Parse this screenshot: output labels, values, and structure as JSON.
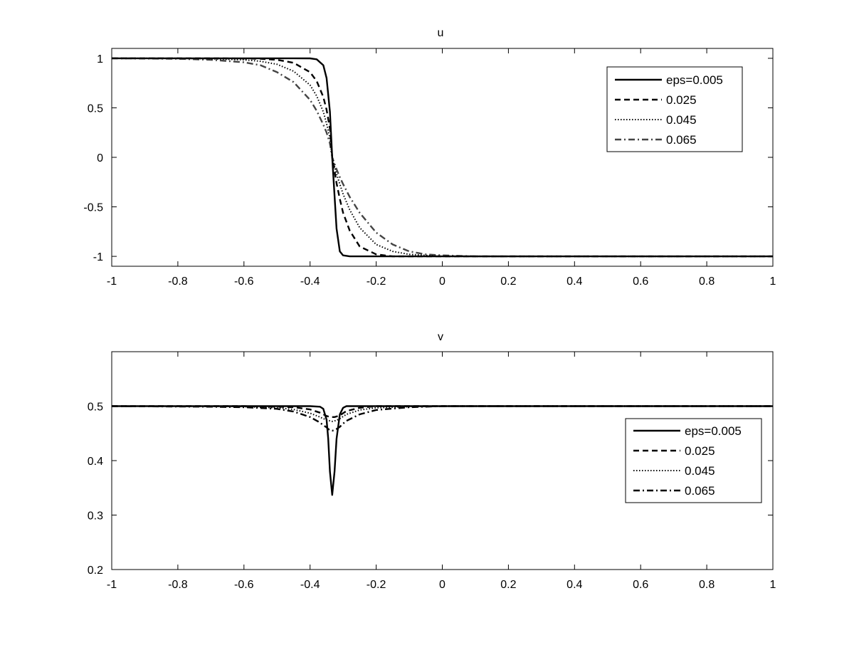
{
  "chart_data": [
    {
      "type": "line",
      "title": "u",
      "xlabel": "",
      "ylabel": "",
      "xlim": [
        -1,
        1
      ],
      "ylim": [
        -1.1,
        1.1
      ],
      "xticks": [
        -1,
        -0.8,
        -0.6,
        -0.4,
        -0.2,
        0,
        0.2,
        0.4,
        0.6,
        0.8,
        1
      ],
      "xtick_labels": [
        "-1",
        "-0.8",
        "-0.6",
        "-0.4",
        "-0.2",
        "0",
        "0.2",
        "0.4",
        "0.6",
        "0.8",
        "1"
      ],
      "yticks": [
        -1,
        -0.5,
        0,
        0.5,
        1
      ],
      "ytick_labels": [
        "-1",
        "-0.5",
        "0",
        "0.5",
        "1"
      ],
      "grid": false,
      "legend_position": "top-right",
      "x": [
        -1,
        -0.8,
        -0.7,
        -0.6,
        -0.55,
        -0.5,
        -0.45,
        -0.4,
        -0.38,
        -0.36,
        -0.35,
        -0.34,
        -0.333,
        -0.32,
        -0.31,
        -0.3,
        -0.28,
        -0.25,
        -0.2,
        -0.15,
        -0.1,
        -0.05,
        0,
        0.1,
        0.3,
        0.6,
        1
      ],
      "series": [
        {
          "name": "eps=0.005",
          "style": "solid",
          "color": "#000000",
          "values": [
            1,
            1,
            1,
            1,
            1,
            1,
            1,
            0.999,
            0.99,
            0.93,
            0.8,
            0.46,
            0,
            -0.72,
            -0.95,
            -0.99,
            -1,
            -1,
            -1,
            -1,
            -1,
            -1,
            -1,
            -1,
            -1,
            -1,
            -1
          ]
        },
        {
          "name": "0.025",
          "style": "dashed",
          "color": "#000000",
          "values": [
            1,
            1,
            1,
            0.998,
            0.995,
            0.985,
            0.955,
            0.86,
            0.77,
            0.61,
            0.48,
            0.29,
            0,
            -0.26,
            -0.42,
            -0.56,
            -0.74,
            -0.9,
            -0.98,
            -1,
            -1,
            -1,
            -1,
            -1,
            -1,
            -1,
            -1
          ]
        },
        {
          "name": "0.045",
          "style": "dotted",
          "color": "#000000",
          "values": [
            1,
            1,
            0.995,
            0.985,
            0.97,
            0.94,
            0.87,
            0.73,
            0.62,
            0.46,
            0.34,
            0.2,
            0,
            -0.17,
            -0.27,
            -0.37,
            -0.53,
            -0.71,
            -0.88,
            -0.95,
            -0.98,
            -0.99,
            -1,
            -1,
            -1,
            -1,
            -1
          ]
        },
        {
          "name": "0.065",
          "style": "dashdot",
          "color": "#444444",
          "values": [
            1,
            0.995,
            0.985,
            0.96,
            0.93,
            0.86,
            0.76,
            0.58,
            0.47,
            0.33,
            0.25,
            0.14,
            0,
            -0.12,
            -0.2,
            -0.27,
            -0.4,
            -0.56,
            -0.76,
            -0.88,
            -0.95,
            -0.98,
            -0.99,
            -1,
            -1,
            -1,
            -1
          ]
        }
      ]
    },
    {
      "type": "line",
      "title": "v",
      "xlabel": "",
      "ylabel": "",
      "xlim": [
        -1,
        1
      ],
      "ylim": [
        0.2,
        0.6
      ],
      "xticks": [
        -1,
        -0.8,
        -0.6,
        -0.4,
        -0.2,
        0,
        0.2,
        0.4,
        0.6,
        0.8,
        1
      ],
      "xtick_labels": [
        "-1",
        "-0.8",
        "-0.6",
        "-0.4",
        "-0.2",
        "0",
        "0.2",
        "0.4",
        "0.6",
        "0.8",
        "1"
      ],
      "yticks": [
        0.2,
        0.3,
        0.4,
        0.5
      ],
      "ytick_labels": [
        "0.2",
        "0.3",
        "0.4",
        "0.5"
      ],
      "grid": false,
      "legend_position": "right",
      "x": [
        -1,
        -0.7,
        -0.6,
        -0.5,
        -0.45,
        -0.4,
        -0.37,
        -0.36,
        -0.35,
        -0.345,
        -0.34,
        -0.333,
        -0.326,
        -0.32,
        -0.31,
        -0.3,
        -0.29,
        -0.25,
        -0.2,
        -0.1,
        0,
        0.1,
        0.5,
        1
      ],
      "series": [
        {
          "name": "eps=0.005",
          "style": "solid",
          "color": "#000000",
          "values": [
            0.5,
            0.5,
            0.5,
            0.5,
            0.5,
            0.5,
            0.499,
            0.495,
            0.475,
            0.44,
            0.38,
            0.337,
            0.38,
            0.44,
            0.485,
            0.497,
            0.5,
            0.5,
            0.5,
            0.5,
            0.5,
            0.5,
            0.5,
            0.5
          ]
        },
        {
          "name": "0.025",
          "style": "dashed",
          "color": "#000000",
          "values": [
            0.5,
            0.5,
            0.5,
            0.499,
            0.498,
            0.494,
            0.488,
            0.485,
            0.482,
            0.481,
            0.48,
            0.48,
            0.48,
            0.481,
            0.483,
            0.487,
            0.491,
            0.497,
            0.5,
            0.5,
            0.5,
            0.5,
            0.5,
            0.5
          ]
        },
        {
          "name": "0.045",
          "style": "dotted",
          "color": "#000000",
          "values": [
            0.5,
            0.5,
            0.499,
            0.497,
            0.494,
            0.487,
            0.48,
            0.477,
            0.475,
            0.474,
            0.473,
            0.472,
            0.473,
            0.474,
            0.477,
            0.481,
            0.485,
            0.493,
            0.497,
            0.499,
            0.5,
            0.5,
            0.5,
            0.5
          ]
        },
        {
          "name": "0.065",
          "style": "dashdot",
          "color": "#000000",
          "values": [
            0.5,
            0.499,
            0.498,
            0.495,
            0.49,
            0.48,
            0.47,
            0.465,
            0.461,
            0.458,
            0.456,
            0.455,
            0.456,
            0.458,
            0.462,
            0.468,
            0.473,
            0.485,
            0.493,
            0.498,
            0.5,
            0.5,
            0.5,
            0.5
          ]
        }
      ]
    }
  ]
}
